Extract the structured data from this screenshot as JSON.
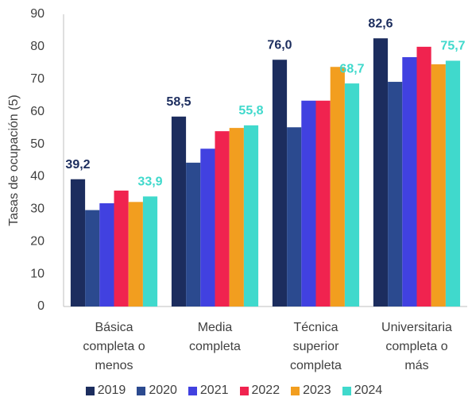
{
  "chart_data": {
    "type": "bar",
    "y_label": "Tasas de ocupación (5)",
    "categories": [
      "Básica completa o menos",
      "Media completa",
      "Técnica superior completa",
      "Universitaria completa o más"
    ],
    "series": [
      {
        "name": "2019",
        "color": "#1c2d5e",
        "values": [
          39.2,
          58.5,
          76.0,
          82.6
        ],
        "value_labels": [
          "39,2",
          "58,5",
          "76,0",
          "82,6"
        ]
      },
      {
        "name": "2020",
        "color": "#2b4a8f",
        "values": [
          29.7,
          44.3,
          55.2,
          69.2
        ]
      },
      {
        "name": "2021",
        "color": "#4141e0",
        "values": [
          31.8,
          48.6,
          63.4,
          76.8
        ]
      },
      {
        "name": "2022",
        "color": "#f0234f",
        "values": [
          35.7,
          54.0,
          63.4,
          80.0
        ]
      },
      {
        "name": "2023",
        "color": "#f29e1f",
        "values": [
          32.2,
          55.0,
          73.8,
          74.6
        ]
      },
      {
        "name": "2024",
        "color": "#40d9cc",
        "values": [
          33.9,
          55.8,
          68.7,
          75.7
        ],
        "value_labels": [
          "33,9",
          "55,8",
          "68,7",
          "75,7"
        ]
      }
    ],
    "ylim": [
      0,
      90
    ],
    "yticks": [
      0,
      10,
      20,
      30,
      40,
      50,
      60,
      70,
      80,
      90
    ],
    "grid": false
  }
}
